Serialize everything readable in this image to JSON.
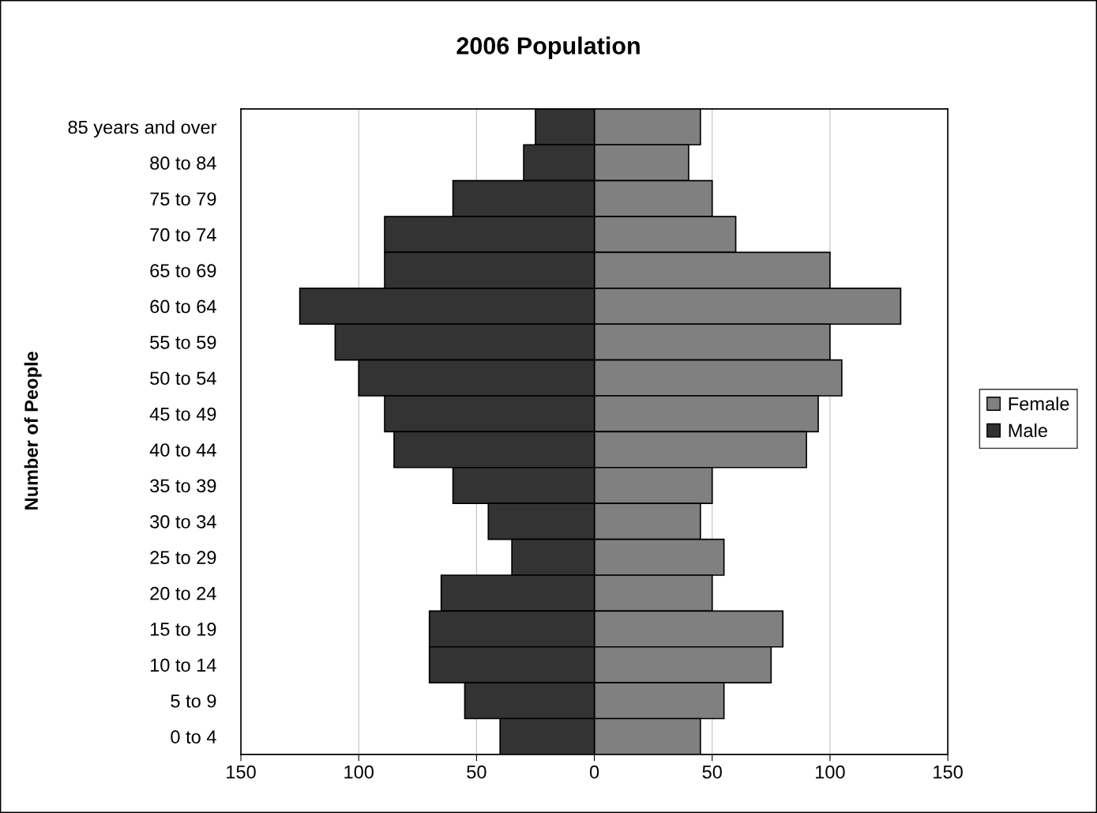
{
  "chart_data": {
    "type": "bar",
    "orientation": "horizontal",
    "stacked": true,
    "title": "2006 Population",
    "ylabel": "Number of People",
    "categories": [
      "85 years and over",
      "80 to 84",
      "75 to 79",
      "70 to 74",
      "65 to 69",
      "60 to 64",
      "55 to 59",
      "50 to 54",
      "45 to 49",
      "40 to 44",
      "35 to 39",
      "30 to 34",
      "25 to 29",
      "20 to 24",
      "15 to 19",
      "10 to 14",
      "5 to 9",
      "0 to 4"
    ],
    "series": [
      {
        "name": "Female",
        "color": "#808080",
        "values": [
          45,
          40,
          50,
          60,
          100,
          130,
          100,
          105,
          95,
          90,
          50,
          45,
          55,
          50,
          80,
          75,
          55,
          45
        ]
      },
      {
        "name": "Male",
        "color": "#333333",
        "values": [
          -25,
          -30,
          -60,
          -89,
          -89,
          -125,
          -110,
          -100,
          -89,
          -85,
          -60,
          -45,
          -35,
          -65,
          -70,
          -70,
          -55,
          -40
        ]
      }
    ],
    "xlim": [
      -150,
      150
    ],
    "xticks": [
      {
        "value": -150,
        "label": "150"
      },
      {
        "value": -100,
        "label": "100"
      },
      {
        "value": -50,
        "label": "50"
      },
      0,
      50,
      100,
      150
    ],
    "grid": "x",
    "legend": "right"
  }
}
